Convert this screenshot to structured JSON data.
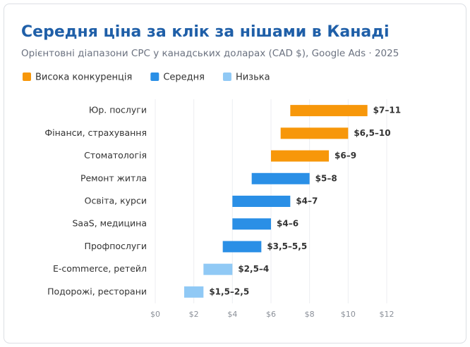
{
  "chart_data": {
    "type": "range_bar",
    "title": "Середня ціна за клік за нішами в Канаді",
    "subtitle": "Орієнтовні діапазони CPC у канадських доларах (CAD $), Google Ads · 2025",
    "categories": [
      "Юр. послуги",
      "Фінанси, страхування",
      "Стоматологія",
      "Ремонт житла",
      "Освіта, курси",
      "SaaS, медицина",
      "Профпослуги",
      "E-commerce, ретейл",
      "Подорожі, ресторани"
    ],
    "series": [
      {
        "name": "Висока конкуренція",
        "color": "#f7970a",
        "low": [
          7,
          6.5,
          6,
          null,
          null,
          null,
          null,
          null,
          null
        ],
        "high": [
          11,
          10,
          9,
          null,
          null,
          null,
          null,
          null,
          null
        ],
        "value_labels": [
          "$7–11",
          "$6,5–10",
          "$6–9",
          null,
          null,
          null,
          null,
          null,
          null
        ]
      },
      {
        "name": "Середня",
        "color": "#2a8fe6",
        "low": [
          null,
          null,
          null,
          5,
          4,
          4,
          3.5,
          null,
          null
        ],
        "high": [
          null,
          null,
          null,
          8,
          7,
          6,
          5.5,
          null,
          null
        ],
        "value_labels": [
          null,
          null,
          null,
          "$5–8",
          "$4–7",
          "$4–6",
          "$3,5–5,5",
          null,
          null
        ]
      },
      {
        "name": "Низька",
        "color": "#90c9f5",
        "low": [
          null,
          null,
          null,
          null,
          null,
          null,
          null,
          2.5,
          1.5
        ],
        "high": [
          null,
          null,
          null,
          null,
          null,
          null,
          null,
          4,
          2.5
        ],
        "value_labels": [
          null,
          null,
          null,
          null,
          null,
          null,
          null,
          "$2,5–4",
          "$1,5–2,5"
        ]
      }
    ],
    "xlim": [
      0,
      12
    ],
    "xticks": [
      {
        "value": 0,
        "label": "$0"
      },
      {
        "value": 2,
        "label": "$2"
      },
      {
        "value": 4,
        "label": "$4"
      },
      {
        "value": 6,
        "label": "$6"
      },
      {
        "value": 8,
        "label": "$8"
      },
      {
        "value": 10,
        "label": "$10"
      },
      {
        "value": 12,
        "label": "$12"
      }
    ],
    "grid": true
  }
}
